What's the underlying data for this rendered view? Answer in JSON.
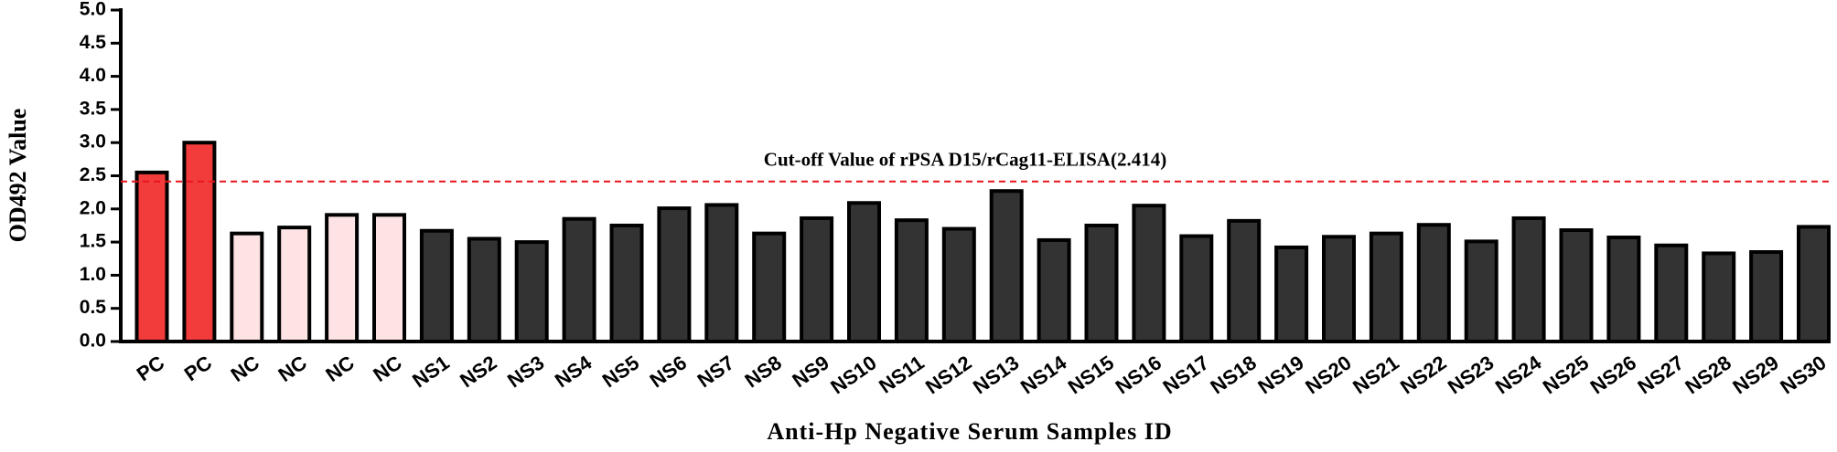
{
  "chart_data": {
    "type": "bar",
    "x_label": "Anti-Hp Negative Serum Samples ID",
    "y_label": "OD492 Value",
    "categories": [
      "PC",
      "PC",
      "NC",
      "NC",
      "NC",
      "NC",
      "NS1",
      "NS2",
      "NS3",
      "NS4",
      "NS5",
      "NS6",
      "NS7",
      "NS8",
      "NS9",
      "NS10",
      "NS11",
      "NS12",
      "NS13",
      "NS14",
      "NS15",
      "NS16",
      "NS17",
      "NS18",
      "NS19",
      "NS20",
      "NS21",
      "NS22",
      "NS23",
      "NS24",
      "NS25",
      "NS26",
      "NS27",
      "NS28",
      "NS29",
      "NS30"
    ],
    "values": [
      2.55,
      3.0,
      1.63,
      1.72,
      1.91,
      1.91,
      1.67,
      1.55,
      1.5,
      1.85,
      1.75,
      2.01,
      2.06,
      1.63,
      1.86,
      2.09,
      1.83,
      1.7,
      2.27,
      1.53,
      1.75,
      2.05,
      1.59,
      1.82,
      1.42,
      1.58,
      1.63,
      1.76,
      1.51,
      1.86,
      1.68,
      1.57,
      1.45,
      1.33,
      1.35,
      1.73
    ],
    "colors": [
      "#f23b3b",
      "#f23b3b",
      "#fde3e3",
      "#fde3e3",
      "#fde3e3",
      "#fde3e3",
      "#333333",
      "#333333",
      "#333333",
      "#333333",
      "#333333",
      "#333333",
      "#333333",
      "#333333",
      "#333333",
      "#333333",
      "#333333",
      "#333333",
      "#333333",
      "#333333",
      "#333333",
      "#333333",
      "#333333",
      "#333333",
      "#333333",
      "#333333",
      "#333333",
      "#333333",
      "#333333",
      "#333333",
      "#333333",
      "#333333",
      "#333333",
      "#333333",
      "#333333",
      "#333333"
    ],
    "cutoff": {
      "value": 2.414,
      "label": "Cut-off Value of rPSA D15/rCag11-ELISA(2.414)",
      "color": "#e8141e"
    },
    "ylim": [
      0,
      5
    ],
    "yticks": [
      {
        "value": 0,
        "label": "0.0"
      },
      {
        "value": 0.5,
        "label": "0.5"
      },
      {
        "value": 1,
        "label": "1.0"
      },
      {
        "value": 1.5,
        "label": "1.5"
      },
      {
        "value": 2,
        "label": "2.0"
      },
      {
        "value": 2.5,
        "label": "2.5"
      },
      {
        "value": 3,
        "label": "3.0"
      },
      {
        "value": 3.5,
        "label": "3.5"
      },
      {
        "value": 4,
        "label": "4.0"
      },
      {
        "value": 4.5,
        "label": "4.5"
      },
      {
        "value": 5,
        "label": "5.0"
      }
    ]
  }
}
